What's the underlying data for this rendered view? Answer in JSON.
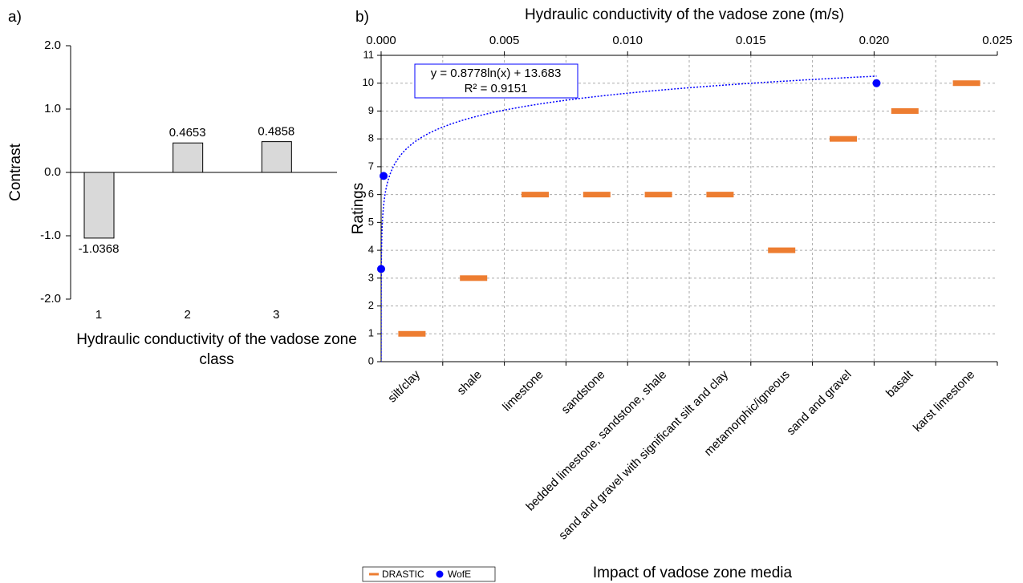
{
  "chart_data": [
    {
      "type": "bar",
      "panel_label": "a)",
      "ylabel": "Contrast",
      "xlabel": "Hydraulic conductivity of the vadose zone class",
      "categories": [
        "1",
        "2",
        "3"
      ],
      "values": [
        -1.0368,
        0.4653,
        0.4858
      ],
      "color": "#d9d9d9",
      "ylim": [
        -2,
        2
      ],
      "yticks": [
        {
          "value": -2,
          "label": "-2.0"
        },
        {
          "value": -1,
          "label": "-1.0"
        },
        {
          "value": 0,
          "label": "0.0"
        },
        {
          "value": 1,
          "label": "1.0"
        },
        {
          "value": 2,
          "label": "2.0"
        }
      ]
    },
    {
      "type": "combo",
      "panel_label": "b)",
      "ylabel": "Ratings",
      "xlabel": "Impact of vadose zone media",
      "x2label": "Hydraulic conductivity of the vadose zone (m/s)",
      "categories": [
        "silt/clay",
        "shale",
        "limestone",
        "sandstone",
        "bedded limestone, sandstone, shale",
        "sand and gravel with significant silt and clay",
        "metamorphic/igneous",
        "sand and gravel",
        "basalt",
        "karst limestone"
      ],
      "series": [
        {
          "name": "DRASTIC",
          "color": "#ed7d31",
          "values": [
            1,
            3,
            6,
            6,
            6,
            6,
            4,
            8,
            9,
            10
          ]
        },
        {
          "name": "WofE",
          "color": "#0000ff",
          "axis": "x2",
          "x": [
            0,
            0.0001,
            0.0201
          ],
          "values": [
            3.33,
            6.67,
            10
          ]
        }
      ],
      "trendline": {
        "equation": "y = 0.8778ln(x) + 13.683",
        "r2": "R² = 0.9151",
        "color": "#0000ff"
      },
      "ylim": [
        0,
        11
      ],
      "yticks": [
        0,
        1,
        2,
        3,
        4,
        5,
        6,
        7,
        8,
        9,
        10,
        11
      ],
      "x2lim": [
        0,
        0.025
      ],
      "x2ticks": [
        {
          "value": 0,
          "label": "0.000"
        },
        {
          "value": 0.005,
          "label": "0.005"
        },
        {
          "value": 0.01,
          "label": "0.010"
        },
        {
          "value": 0.015,
          "label": "0.015"
        },
        {
          "value": 0.02,
          "label": "0.020"
        },
        {
          "value": 0.025,
          "label": "0.025"
        }
      ],
      "grid": true,
      "legend": "bottom-left"
    }
  ]
}
